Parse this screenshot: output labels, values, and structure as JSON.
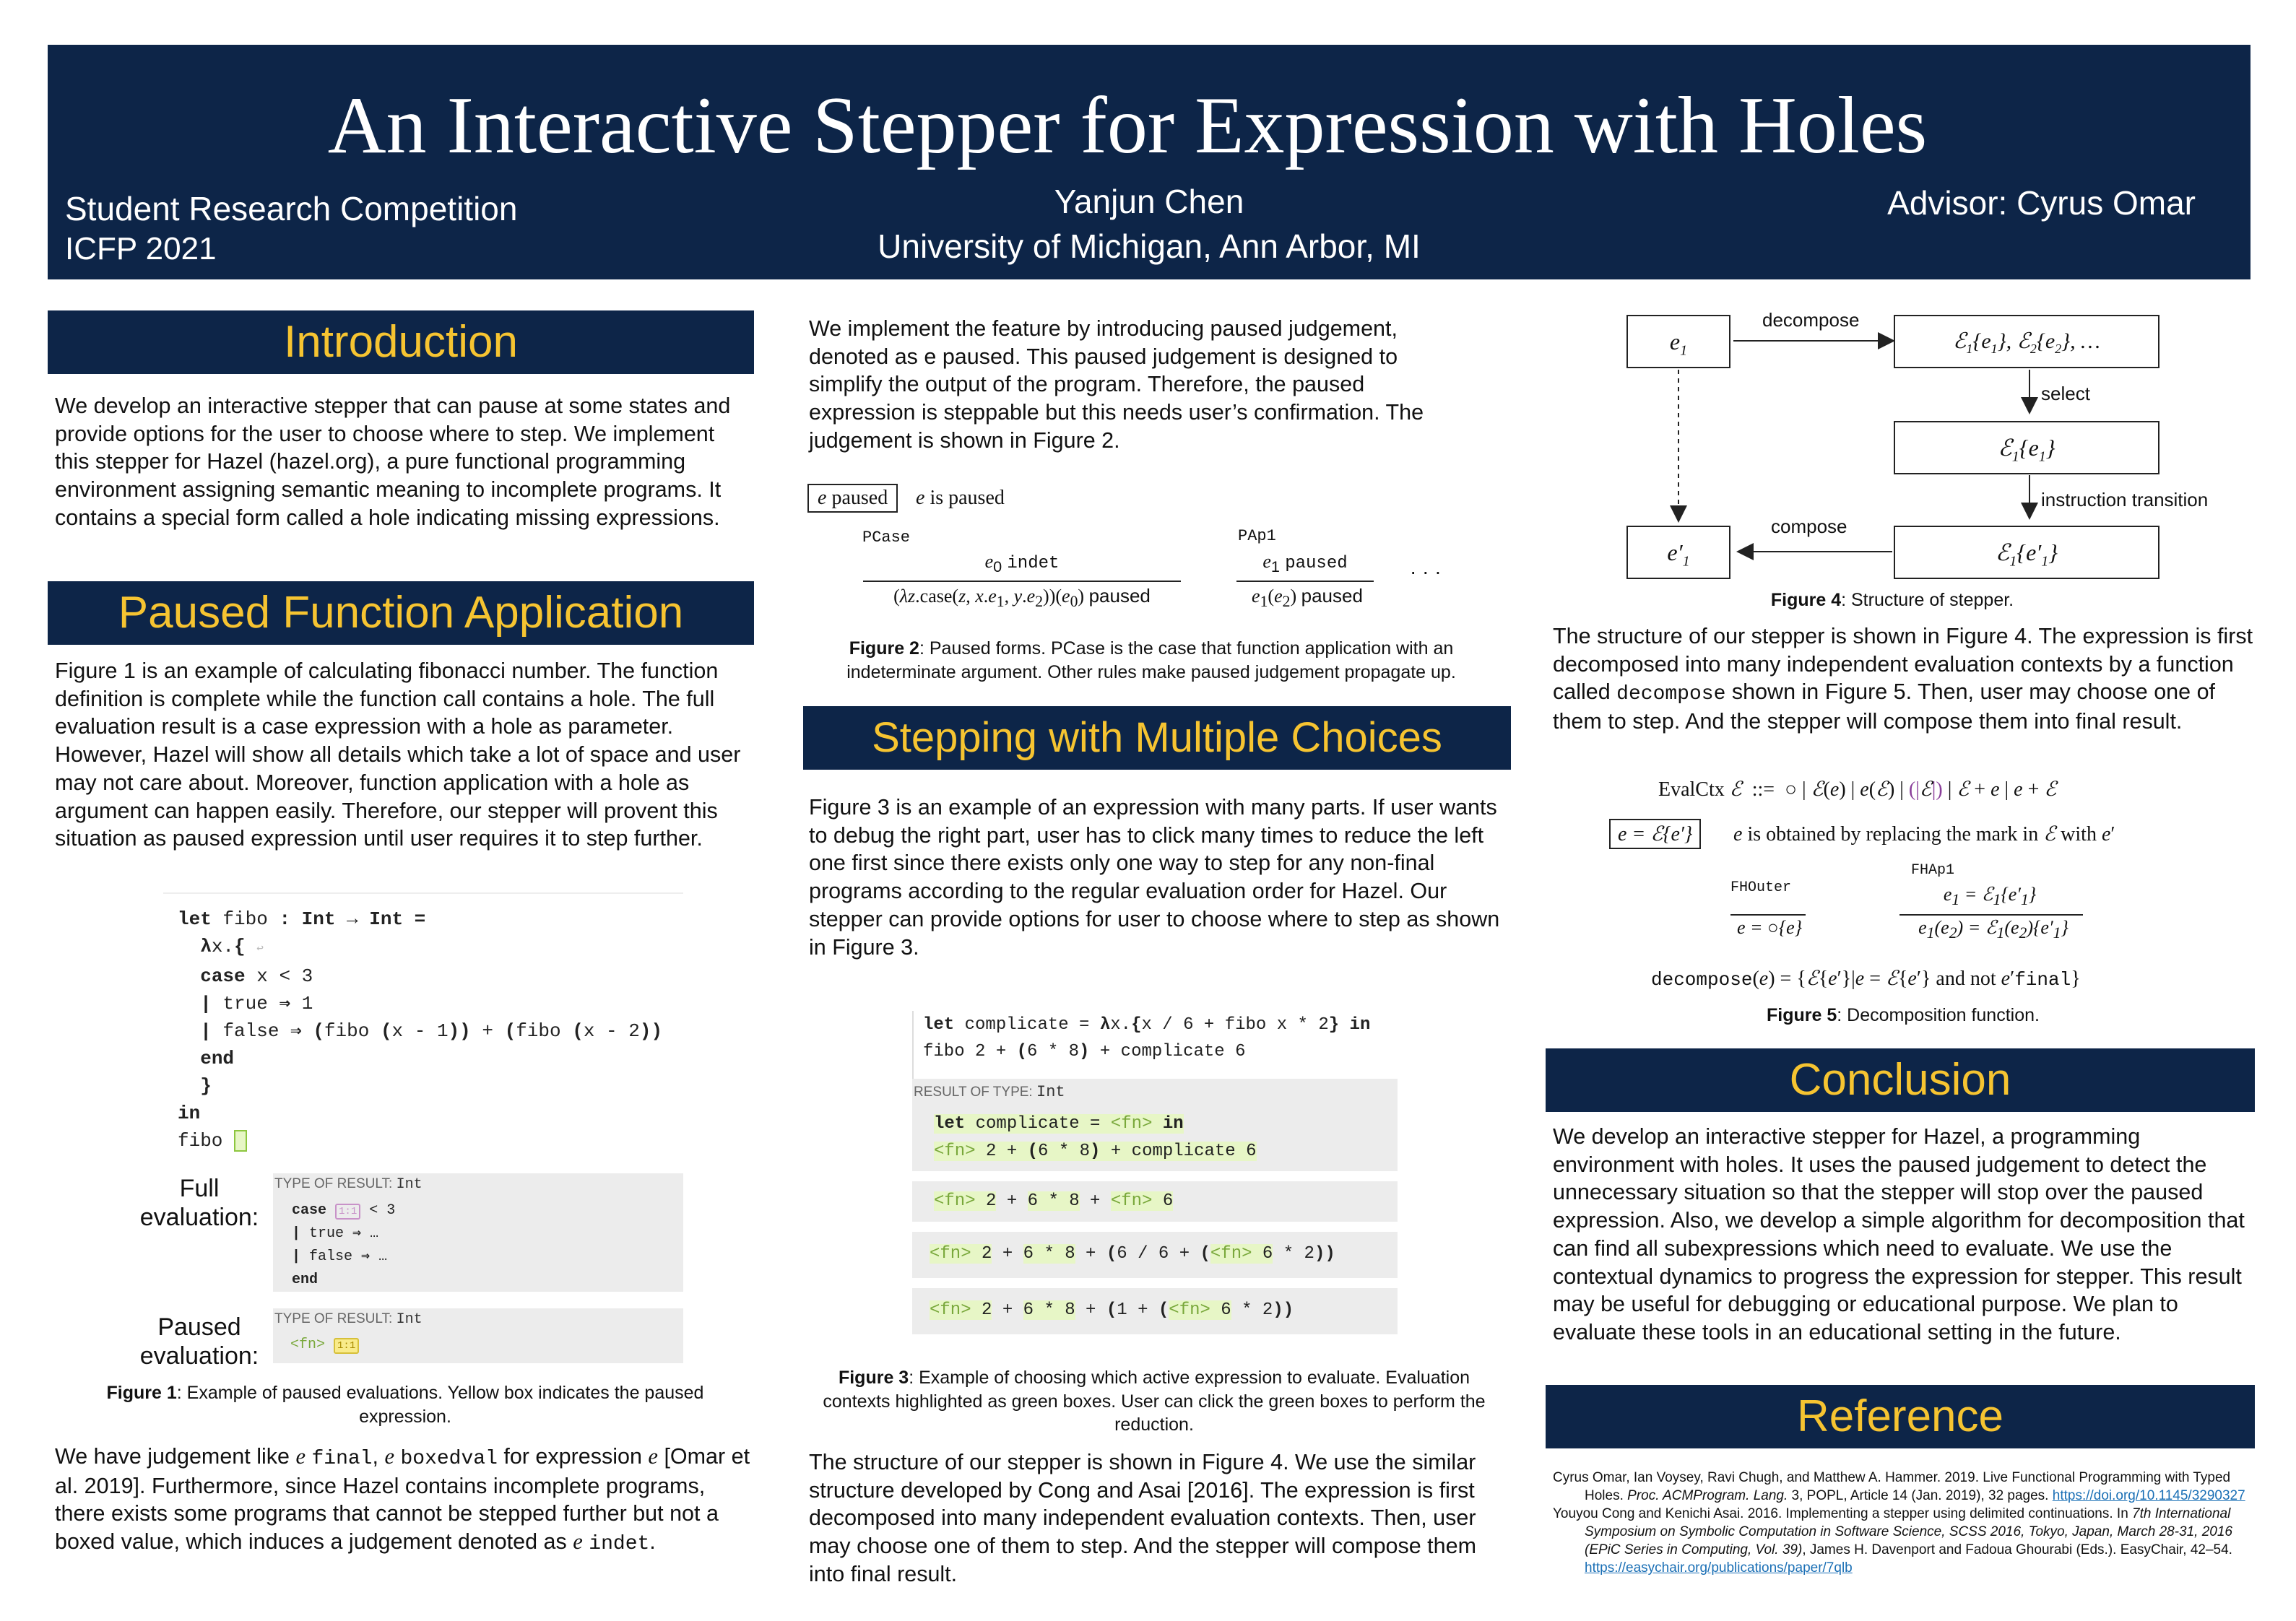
{
  "header": {
    "title": "An Interactive Stepper for Expression with Holes",
    "competition": "Student Research Competition",
    "conference": "ICFP 2021",
    "author": "Yanjun Chen",
    "affiliation": "University of Michigan, Ann Arbor, MI",
    "advisor": "Advisor: Cyrus Omar"
  },
  "intro": {
    "heading": "Introduction",
    "text": "We develop an interactive stepper that can pause at some states and provide options for the user to choose where to step. We implement this stepper for Hazel (hazel.org), a pure functional programming environment assigning semantic meaning to incomplete programs. It contains a special form called a hole indicating missing expressions."
  },
  "paused": {
    "heading": "Paused Function Application",
    "text": "Figure 1 is an example of calculating fibonacci number. The function definition is complete while the function call contains a hole. The full evaluation result is a case expression with a hole as parameter. However, Hazel will show all details which take a lot of space and user may not care about. Moreover, function application with a hole as argument can happen easily. Therefore, our stepper will provent this situation as paused expression until user requires it to step further.",
    "full_eval_label": "Full evaluation:",
    "paused_eval_label": "Paused evaluation:",
    "type_of_result": "TYPE OF RESULT:",
    "type_int": "Int",
    "fig1_label": "Figure 1",
    "fig1_caption": ": Example of paused evaluations. Yellow box indicates the paused expression.",
    "text2_a": "We have judgement like ",
    "text2_b": "[Omar et al. 2019]. Furthermore, since Hazel contains incomplete programs, there exists some programs that cannot be stepped further but not a boxed value, which induces a judgement denoted as ",
    "hole_mark": "1:1"
  },
  "middle": {
    "text1": "We implement the feature by introducing paused judgement, denoted as e paused. This paused judgement is designed to simplify the output of the program. Therefore, the paused expression is steppable but this needs user’s confirmation. The judgement is shown in Figure 2.",
    "fig2_label": "Figure 2",
    "fig2_caption": ": Paused forms. PCase is the case that function application with an indeterminate argument. Other rules make paused judgement propagate up.",
    "pcase": "PCase",
    "pap1": "PAp1",
    "stepping_heading": "Stepping with Multiple Choices",
    "text2": "Figure 3 is an example of an expression with many parts. If user wants to debug the right part, user has to click many times to reduce the left one first since there exists only one way to step for any non-final programs according to the regular evaluation order for Hazel. Our stepper can provide options for user to choose where to step as shown in Figure 3.",
    "result_of_type": "RESULT OF TYPE:",
    "fig3_label": "Figure 3",
    "fig3_caption": ": Example of choosing which active expression to evaluate. Evaluation contexts highlighted as green boxes. User can click the green boxes to perform the reduction.",
    "text3": "The structure of our stepper is shown in Figure 4. We use the similar structure developed by Cong and Asai [2016]. The expression is first decomposed into many independent evaluation contexts. Then, user may choose one of them to step. And the stepper will compose them into final result."
  },
  "right": {
    "decompose": "decompose",
    "select": "select",
    "instruction_transition": "instruction transition",
    "compose": "compose",
    "fig4_label": "Figure 4",
    "fig4_caption": ": Structure of stepper.",
    "text1_a": "The structure of our stepper is shown in Figure 4. The expression is first decomposed into many independent evaluation contexts by a function called ",
    "text1_code": "decompose",
    "text1_b": " shown in Figure 5. Then, user may choose one of them to step. And the stepper will compose them into final result.",
    "fhouter": "FHOuter",
    "fhap1": "FHAp1",
    "fig5_label": "Figure 5",
    "fig5_caption": ": Decomposition function.",
    "conclusion_heading": "Conclusion",
    "conclusion_text": "We develop an interactive stepper for Hazel, a programming environment with holes. It uses the paused judgement to detect the unnecessary situation so that the stepper will stop over the paused expression. Also, we develop a simple algorithm for decomposition that can find all subexpressions which need to evaluate. We use the contextual dynamics to progress the expression for stepper. This result may be useful for debugging or educational purpose. We plan to evaluate these tools in an educational setting in the future.",
    "reference_heading": "Reference",
    "ref1_a": "Cyrus Omar, Ian Voysey, Ravi Chugh, and Matthew A. Hammer. 2019. Live Functional Programming with Typed Holes. ",
    "ref1_b": "Proc. ACMProgram. Lang.",
    "ref1_c": " 3, POPL, Article 14 (Jan. 2019), 32 pages. ",
    "ref1_link": "https://doi.org/10.1145/3290327",
    "ref2_a": "Youyou Cong and Kenichi Asai. 2016. Implementing a stepper using delimited continuations. In ",
    "ref2_b": "7th International Symposium on Symbolic Computation in Software Science, SCSS 2016, Tokyo, Japan, March 28-31, 2016 (EPiC Series in Computing, Vol. 39)",
    "ref2_c": ", James H. Davenport and Fadoua Ghourabi (Eds.). EasyChair, 42–54. ",
    "ref2_link": "https://easychair.org/publications/paper/7qlb"
  }
}
